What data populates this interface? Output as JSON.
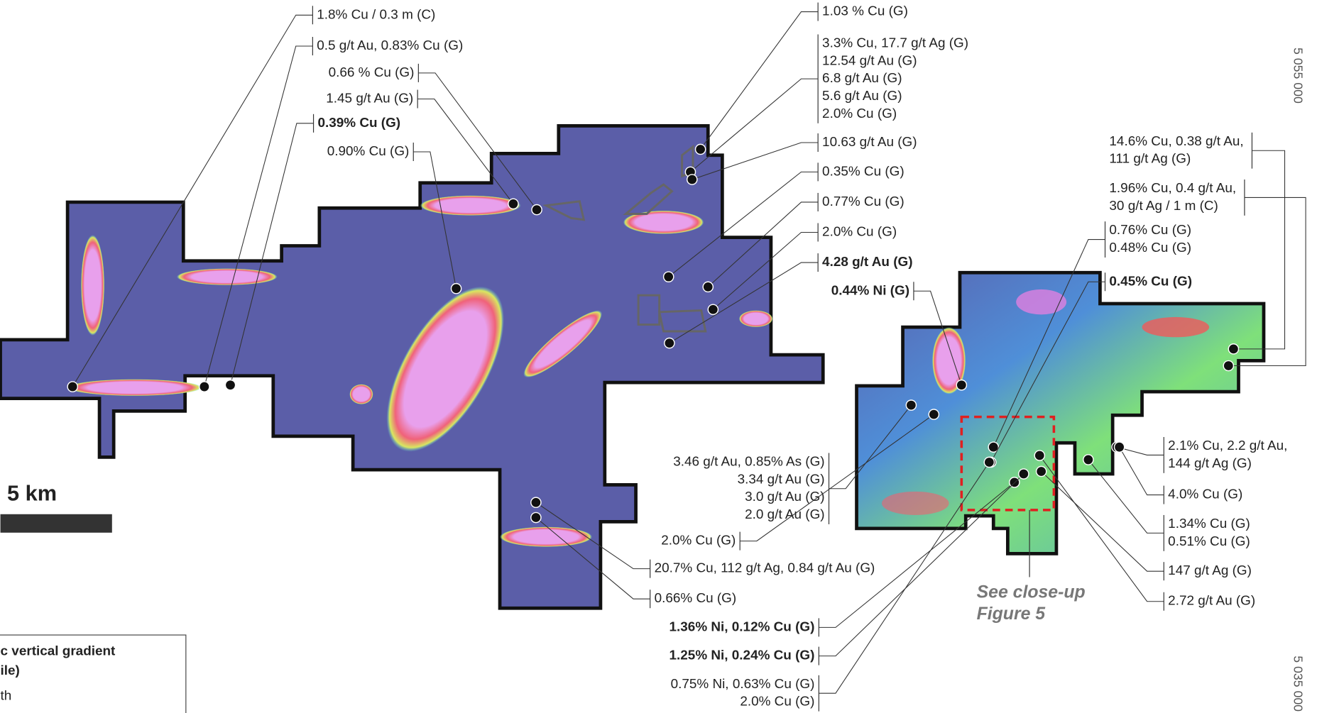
{
  "labels": [
    {
      "lines": [
        "1.8% Cu / 0.3 m (C)"
      ]
    },
    {
      "lines": [
        "0.5 g/t Au, 0.83% Cu (G)"
      ]
    },
    {
      "lines": [
        "0.66 % Cu (G)"
      ]
    },
    {
      "lines": [
        "1.45 g/t Au (G)"
      ]
    },
    {
      "lines": [
        "0.39% Cu (G)"
      ],
      "bold": true
    },
    {
      "lines": [
        "0.90% Cu (G)"
      ]
    },
    {
      "lines": [
        "1.03 % Cu (G)"
      ]
    },
    {
      "lines": [
        "3.3% Cu, 17.7 g/t Ag (G)",
        "12.54 g/t Au (G)",
        "6.8 g/t Au (G)",
        "5.6 g/t Au (G)",
        "2.0% Cu (G)"
      ]
    },
    {
      "lines": [
        "10.63 g/t Au (G)"
      ]
    },
    {
      "lines": [
        "0.35% Cu (G)"
      ]
    },
    {
      "lines": [
        "0.77% Cu (G)"
      ]
    },
    {
      "lines": [
        "2.0% Cu (G)"
      ]
    },
    {
      "lines": [
        "4.28 g/t Au (G)"
      ],
      "bold": true
    },
    {
      "lines": [
        "0.44% Ni (G)"
      ],
      "bold": true
    },
    {
      "lines": [
        "14.6% Cu, 0.38 g/t Au,",
        "111 g/t Ag (G)"
      ]
    },
    {
      "lines": [
        "1.96% Cu, 0.4 g/t Au,",
        "30 g/t Ag / 1 m (C)"
      ]
    },
    {
      "lines": [
        "0.76% Cu (G)",
        "0.48% Cu (G)"
      ]
    },
    {
      "lines": [
        "0.45% Cu (G)"
      ],
      "bold": true
    },
    {
      "lines": [
        "3.46 g/t Au, 0.85% As (G)",
        "3.34 g/t Au (G)",
        "3.0 g/t Au (G)",
        "2.0 g/t Au (G)"
      ]
    },
    {
      "lines": [
        "2.0% Cu (G)"
      ]
    },
    {
      "lines": [
        "20.7% Cu, 112 g/t Ag, 0.84 g/t Au (G)"
      ]
    },
    {
      "lines": [
        "0.66% Cu (G)"
      ]
    },
    {
      "lines": [
        "1.36% Ni, 0.12% Cu (G)"
      ],
      "bold": true
    },
    {
      "lines": [
        "1.25% Ni, 0.24% Cu (G)"
      ],
      "bold": true
    },
    {
      "lines": [
        "0.75% Ni, 0.63% Cu (G)",
        "2.0% Cu (G)"
      ]
    },
    {
      "lines": [
        "2.1% Cu, 2.2 g/t Au,",
        "144 g/t Ag (G)"
      ]
    },
    {
      "lines": [
        "4.0% Cu (G)"
      ]
    },
    {
      "lines": [
        "1.34% Cu (G)",
        "0.51% Cu (G)"
      ]
    },
    {
      "lines": [
        "147 g/t Ag (G)"
      ]
    },
    {
      "lines": [
        "2.72 g/t Au (G)"
      ]
    }
  ],
  "closeup": {
    "lines": [
      "See close-up",
      "Figure 5"
    ]
  },
  "scale_bar": "5 km",
  "legend": {
    "lines": [
      "c vertical gradient",
      "ile)"
    ],
    "entry": "th"
  },
  "coordinates": [
    "5 055 000",
    "5 035 000"
  ]
}
